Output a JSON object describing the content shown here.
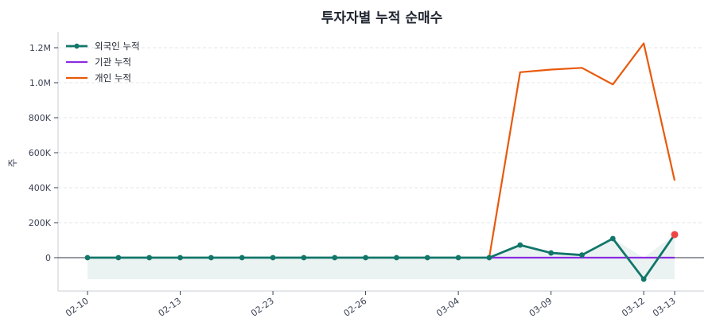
{
  "chart_data": {
    "type": "line",
    "title": "투자자별 누적 순매수",
    "xlabel": "",
    "ylabel": "주",
    "ylim": [
      -190000,
      1300000
    ],
    "grid": {
      "y": true,
      "x": false,
      "style": "dashed"
    },
    "legend_position": "upper-left",
    "x_tick_labels": [
      {
        "index": 0,
        "label": "02-10"
      },
      {
        "index": 3,
        "label": "02-13"
      },
      {
        "index": 6,
        "label": "02-23"
      },
      {
        "index": 9,
        "label": "02-26"
      },
      {
        "index": 12,
        "label": "03-04"
      },
      {
        "index": 15,
        "label": "03-09"
      },
      {
        "index": 18,
        "label": "03-12"
      },
      {
        "index": 19,
        "label": "03-13"
      }
    ],
    "y_ticks": [
      {
        "value": 0,
        "label": "0"
      },
      {
        "value": 200000,
        "label": "200K"
      },
      {
        "value": 400000,
        "label": "400K"
      },
      {
        "value": 600000,
        "label": "600K"
      },
      {
        "value": 800000,
        "label": "800K"
      },
      {
        "value": 1000000,
        "label": "1.0M"
      },
      {
        "value": 1200000,
        "label": "1.2M"
      }
    ],
    "n_points": 20,
    "series": [
      {
        "name": "외국인 누적",
        "color": "#12766a",
        "markers": true,
        "fill_to_zero": true,
        "last_point_color": "#ef4444",
        "values": [
          0,
          0,
          0,
          0,
          0,
          0,
          0,
          0,
          0,
          0,
          0,
          0,
          0,
          0,
          72000,
          27000,
          15000,
          109000,
          -123000,
          132000
        ]
      },
      {
        "name": "기관 누적",
        "color": "#8b2be2",
        "markers": false,
        "start_index": 13,
        "values": [
          null,
          null,
          null,
          null,
          null,
          null,
          null,
          null,
          null,
          null,
          null,
          null,
          null,
          0,
          0,
          0,
          0,
          0,
          0,
          0
        ]
      },
      {
        "name": "개인 누적",
        "color": "#e8590c",
        "markers": false,
        "start_index": 13,
        "values": [
          null,
          null,
          null,
          null,
          null,
          null,
          null,
          null,
          null,
          null,
          null,
          null,
          null,
          0,
          1060000,
          1075000,
          1085000,
          990000,
          1225000,
          441000
        ]
      }
    ]
  }
}
